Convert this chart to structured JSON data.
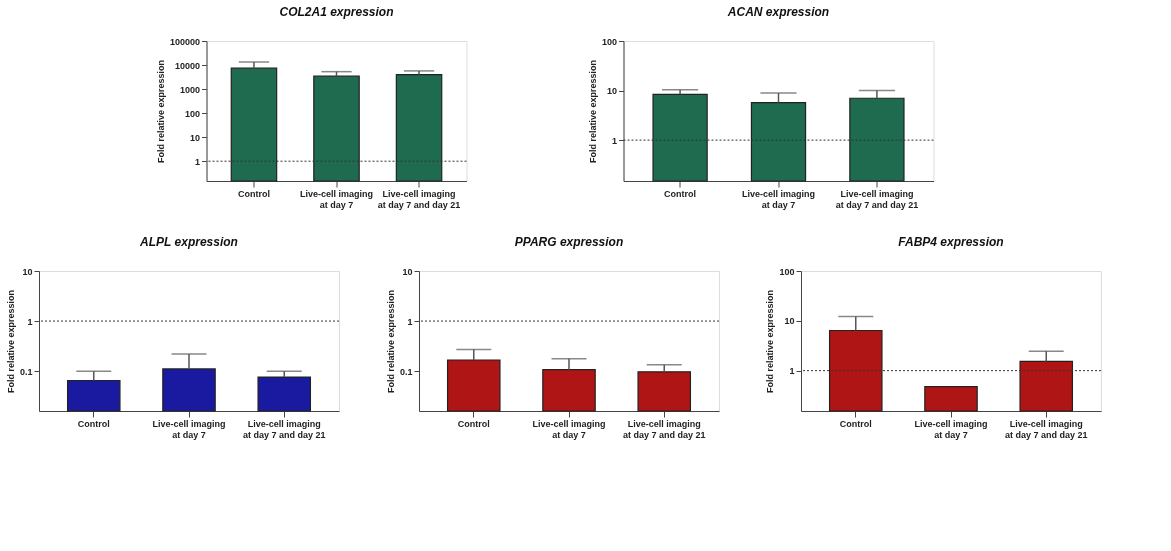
{
  "chart_data": [
    {
      "type": "bar",
      "title": "COL2A1 expression",
      "ylabel": "Fold relative expression",
      "categories": [
        "Control",
        "Live-cell imaging\nat day 7",
        "Live-cell imaging\nat day 7 and day 21"
      ],
      "values": [
        7400,
        3450,
        4000
      ],
      "errors": [
        [
          7400,
          13500
        ],
        [
          3450,
          5300
        ],
        [
          4000,
          5700
        ]
      ],
      "color": "#1e6b50",
      "log": true,
      "ylim": [
        0.15,
        100000
      ],
      "yticks": [
        1,
        10,
        100,
        1000,
        10000,
        100000
      ],
      "grid": false,
      "ref_lines": [
        {
          "axis": "y",
          "value": 1,
          "line_style": "dotted"
        }
      ]
    },
    {
      "type": "bar",
      "title": "ACAN expression",
      "ylabel": "Fold relative expression",
      "categories": [
        "Control",
        "Live-cell imaging\nat day 7",
        "Live-cell imaging\nat day 7 and day 21"
      ],
      "values": [
        8.4,
        5.7,
        7.0
      ],
      "errors": [
        [
          8.4,
          10.4
        ],
        [
          5.7,
          8.9
        ],
        [
          7.0,
          10.0
        ]
      ],
      "color": "#1e6b50",
      "log": true,
      "ylim": [
        0.15,
        100
      ],
      "yticks": [
        1,
        10,
        100
      ],
      "grid": false,
      "ref_lines": [
        {
          "axis": "y",
          "value": 1,
          "line_style": "dotted"
        }
      ]
    },
    {
      "type": "bar",
      "title": "ALPL expression",
      "ylabel": "Fold relative expression",
      "categories": [
        "Control",
        "Live-cell imaging\nat day 7",
        "Live-cell imaging\nat day 7 and day 21"
      ],
      "values": [
        0.065,
        0.111,
        0.076
      ],
      "errors": [
        [
          0.065,
          0.1
        ],
        [
          0.111,
          0.22
        ],
        [
          0.076,
          0.1
        ]
      ],
      "color": "#1a1aa0",
      "log": true,
      "ylim": [
        0.016,
        10
      ],
      "yticks": [
        0.1,
        1,
        10
      ],
      "grid": false,
      "ref_lines": [
        {
          "axis": "y",
          "value": 1,
          "line_style": "dotted"
        }
      ]
    },
    {
      "type": "bar",
      "title": "PPARG expression",
      "ylabel": "Fold relative expression",
      "categories": [
        "Control",
        "Live-cell imaging\nat day 7",
        "Live-cell imaging\nat day 7 and day 21"
      ],
      "values": [
        0.167,
        0.107,
        0.097
      ],
      "errors": [
        [
          0.167,
          0.27
        ],
        [
          0.107,
          0.176
        ],
        [
          0.097,
          0.134
        ]
      ],
      "color": "#b01515",
      "log": true,
      "ylim": [
        0.016,
        10
      ],
      "yticks": [
        0.1,
        1,
        10
      ],
      "grid": false,
      "ref_lines": [
        {
          "axis": "y",
          "value": 1,
          "line_style": "dotted"
        }
      ]
    },
    {
      "type": "bar",
      "title": "FABP4 expression",
      "ylabel": "Fold relative expression",
      "categories": [
        "Control",
        "Live-cell imaging\nat day 7",
        "Live-cell imaging\nat day 7 and day 21"
      ],
      "values": [
        6.4,
        0.48,
        1.53
      ],
      "errors": [
        [
          6.4,
          12.2
        ],
        null,
        [
          1.53,
          2.46
        ]
      ],
      "color": "#b01515",
      "log": true,
      "ylim": [
        0.155,
        100
      ],
      "yticks": [
        1,
        10,
        100
      ],
      "grid": false,
      "ref_lines": [
        {
          "axis": "y",
          "value": 1,
          "line_style": "dotted"
        }
      ]
    }
  ]
}
